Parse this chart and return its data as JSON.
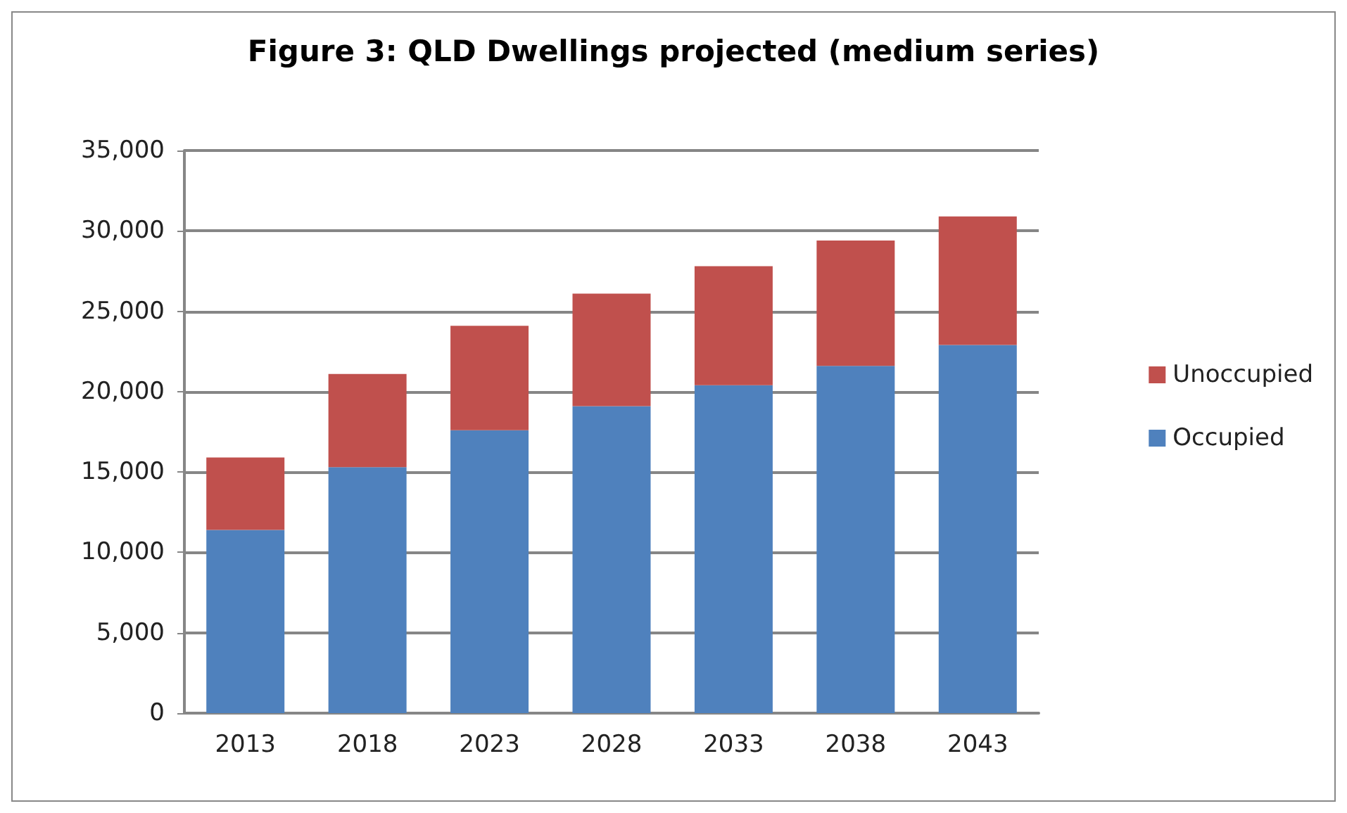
{
  "chart_data": {
    "type": "bar",
    "title": "Figure 3: QLD Dwellings projected (medium series)",
    "categories": [
      "2013",
      "2018",
      "2023",
      "2028",
      "2033",
      "2038",
      "2043"
    ],
    "stacked": true,
    "series": [
      {
        "name": "Occupied",
        "color": "#4f81bd",
        "values": [
          11400,
          15300,
          17600,
          19100,
          20400,
          21600,
          22900
        ]
      },
      {
        "name": "Unoccupied",
        "color": "#c0504d",
        "values": [
          4500,
          5800,
          6500,
          7000,
          7400,
          7800,
          8000
        ]
      }
    ],
    "ylim": [
      0,
      35000
    ],
    "yticks": [
      0,
      {
        "value": 5000,
        "label": "5,000"
      },
      {
        "value": 10000,
        "label": "10,000"
      },
      {
        "value": 15000,
        "label": "15,000"
      },
      {
        "value": 20000,
        "label": "20,000"
      },
      {
        "value": 25000,
        "label": "25,000"
      },
      {
        "value": 30000,
        "label": "30,000"
      },
      {
        "value": 35000,
        "label": "35,000"
      }
    ],
    "grid": "y",
    "legend": "right"
  }
}
